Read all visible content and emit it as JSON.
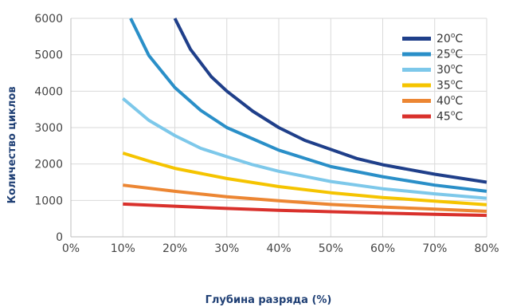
{
  "chart_data": {
    "type": "line",
    "xlabel": "Глубина разряда (%)",
    "ylabel": "Количество циклов",
    "xlim": [
      0,
      80
    ],
    "ylim": [
      0,
      6000
    ],
    "x_ticks": [
      {
        "value": 0,
        "label": "0%"
      },
      {
        "value": 10,
        "label": "10%"
      },
      {
        "value": 20,
        "label": "20%"
      },
      {
        "value": 30,
        "label": "30%"
      },
      {
        "value": 40,
        "label": "40%"
      },
      {
        "value": 50,
        "label": "50%"
      },
      {
        "value": 60,
        "label": "60%"
      },
      {
        "value": 70,
        "label": "70%"
      },
      {
        "value": 80,
        "label": "80%"
      }
    ],
    "y_ticks": [
      {
        "value": 0,
        "label": "0"
      },
      {
        "value": 1000,
        "label": "1000"
      },
      {
        "value": 2000,
        "label": "2000"
      },
      {
        "value": 3000,
        "label": "3000"
      },
      {
        "value": 4000,
        "label": "4000"
      },
      {
        "value": 5000,
        "label": "5000"
      },
      {
        "value": 6000,
        "label": "6000"
      }
    ],
    "grid": true,
    "legend_position": "top-right",
    "series": [
      {
        "name": "20",
        "unit": "C",
        "color": "#1f3f8a",
        "points": [
          [
            20,
            6000
          ],
          [
            23,
            5150
          ],
          [
            27,
            4400
          ],
          [
            30,
            4000
          ],
          [
            35,
            3450
          ],
          [
            40,
            3000
          ],
          [
            45,
            2650
          ],
          [
            50,
            2400
          ],
          [
            55,
            2150
          ],
          [
            60,
            1980
          ],
          [
            70,
            1720
          ],
          [
            80,
            1500
          ]
        ]
      },
      {
        "name": "25",
        "unit": "C",
        "color": "#2a8fc8",
        "points": [
          [
            11.5,
            6000
          ],
          [
            15,
            4980
          ],
          [
            20,
            4100
          ],
          [
            25,
            3470
          ],
          [
            30,
            3000
          ],
          [
            40,
            2380
          ],
          [
            50,
            1930
          ],
          [
            60,
            1650
          ],
          [
            70,
            1420
          ],
          [
            80,
            1250
          ]
        ]
      },
      {
        "name": "30",
        "unit": "C",
        "color": "#7dc8ea",
        "points": [
          [
            10,
            3800
          ],
          [
            15,
            3200
          ],
          [
            20,
            2780
          ],
          [
            25,
            2430
          ],
          [
            30,
            2200
          ],
          [
            35,
            1980
          ],
          [
            40,
            1800
          ],
          [
            50,
            1520
          ],
          [
            60,
            1320
          ],
          [
            70,
            1180
          ],
          [
            80,
            1060
          ]
        ]
      },
      {
        "name": "35",
        "unit": "C",
        "color": "#f5c400",
        "points": [
          [
            10,
            2300
          ],
          [
            15,
            2080
          ],
          [
            20,
            1880
          ],
          [
            25,
            1740
          ],
          [
            30,
            1600
          ],
          [
            40,
            1380
          ],
          [
            50,
            1210
          ],
          [
            60,
            1080
          ],
          [
            70,
            980
          ],
          [
            80,
            880
          ]
        ]
      },
      {
        "name": "40",
        "unit": "C",
        "color": "#ec8633",
        "points": [
          [
            10,
            1420
          ],
          [
            20,
            1250
          ],
          [
            30,
            1100
          ],
          [
            40,
            990
          ],
          [
            50,
            890
          ],
          [
            60,
            820
          ],
          [
            70,
            760
          ],
          [
            80,
            700
          ]
        ]
      },
      {
        "name": "45",
        "unit": "C",
        "color": "#d9312c",
        "points": [
          [
            10,
            900
          ],
          [
            20,
            840
          ],
          [
            30,
            780
          ],
          [
            40,
            730
          ],
          [
            50,
            690
          ],
          [
            60,
            650
          ],
          [
            70,
            620
          ],
          [
            80,
            590
          ]
        ]
      }
    ]
  }
}
